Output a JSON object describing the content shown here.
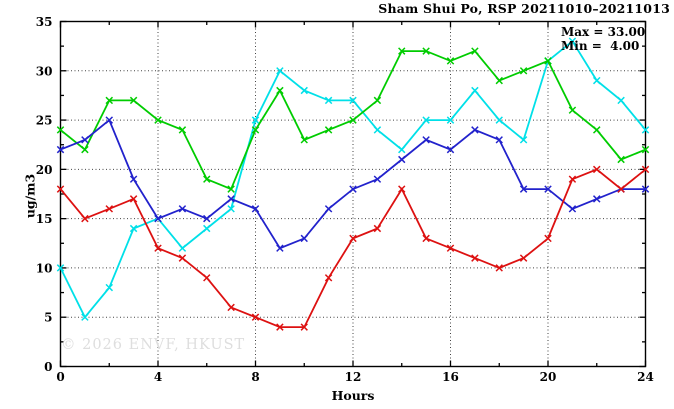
{
  "title": "Sham Shui Po, RSP 20211010–20211013",
  "watermark": "© 2026 ENVF, HKUST",
  "annotations": {
    "max_label": "Max = 33.00",
    "min_label": "Min =  4.00"
  },
  "chart_data": {
    "type": "line",
    "title": "Sham Shui Po, RSP 20211010–20211013",
    "xlabel": "Hours",
    "ylabel": "ug/m3",
    "xlim": [
      0,
      24
    ],
    "ylim": [
      0,
      35
    ],
    "x_major_ticks": [
      0,
      4,
      8,
      12,
      16,
      20,
      24
    ],
    "x_minor_ticks": [
      2,
      6,
      10,
      14,
      18,
      22
    ],
    "y_major_ticks": [
      0,
      5,
      10,
      15,
      20,
      25,
      30,
      35
    ],
    "y_minor_ticks": [
      2.5,
      7.5,
      12.5,
      17.5,
      22.5,
      27.5,
      32.5
    ],
    "x_gridlines": [
      4,
      8,
      12,
      16,
      20
    ],
    "y_gridlines": [
      5,
      10,
      15,
      20,
      25,
      30
    ],
    "grid": "dotted",
    "legend": "none",
    "stat_max": 33.0,
    "stat_min": 4.0,
    "x": [
      0,
      1,
      2,
      3,
      4,
      5,
      6,
      7,
      8,
      9,
      10,
      11,
      12,
      13,
      14,
      15,
      16,
      17,
      18,
      19,
      20,
      21,
      22,
      23,
      24
    ],
    "series": [
      {
        "name": "cyan-line",
        "color": "#00e0e8",
        "values": [
          10,
          5,
          8,
          14,
          15,
          12,
          14,
          16,
          25,
          30,
          28,
          27,
          27,
          24,
          22,
          25,
          25,
          28,
          25,
          23,
          31,
          33,
          29,
          27,
          24
        ]
      },
      {
        "name": "green-line",
        "color": "#00cc00",
        "values": [
          24,
          22,
          27,
          27,
          25,
          24,
          19,
          18,
          24,
          28,
          23,
          24,
          25,
          27,
          32,
          32,
          31,
          32,
          29,
          30,
          31,
          26,
          24,
          21,
          22
        ]
      },
      {
        "name": "blue-line",
        "color": "#2222cc",
        "values": [
          22,
          23,
          25,
          19,
          15,
          16,
          15,
          17,
          16,
          12,
          13,
          16,
          18,
          19,
          21,
          23,
          22,
          24,
          23,
          18,
          18,
          16,
          17,
          18,
          18
        ]
      },
      {
        "name": "red-line",
        "color": "#dd1111",
        "values": [
          18,
          15,
          16,
          17,
          12,
          11,
          9,
          6,
          5,
          4,
          4,
          9,
          13,
          14,
          18,
          13,
          12,
          11,
          10,
          11,
          13,
          19,
          20,
          18,
          20
        ]
      }
    ]
  }
}
